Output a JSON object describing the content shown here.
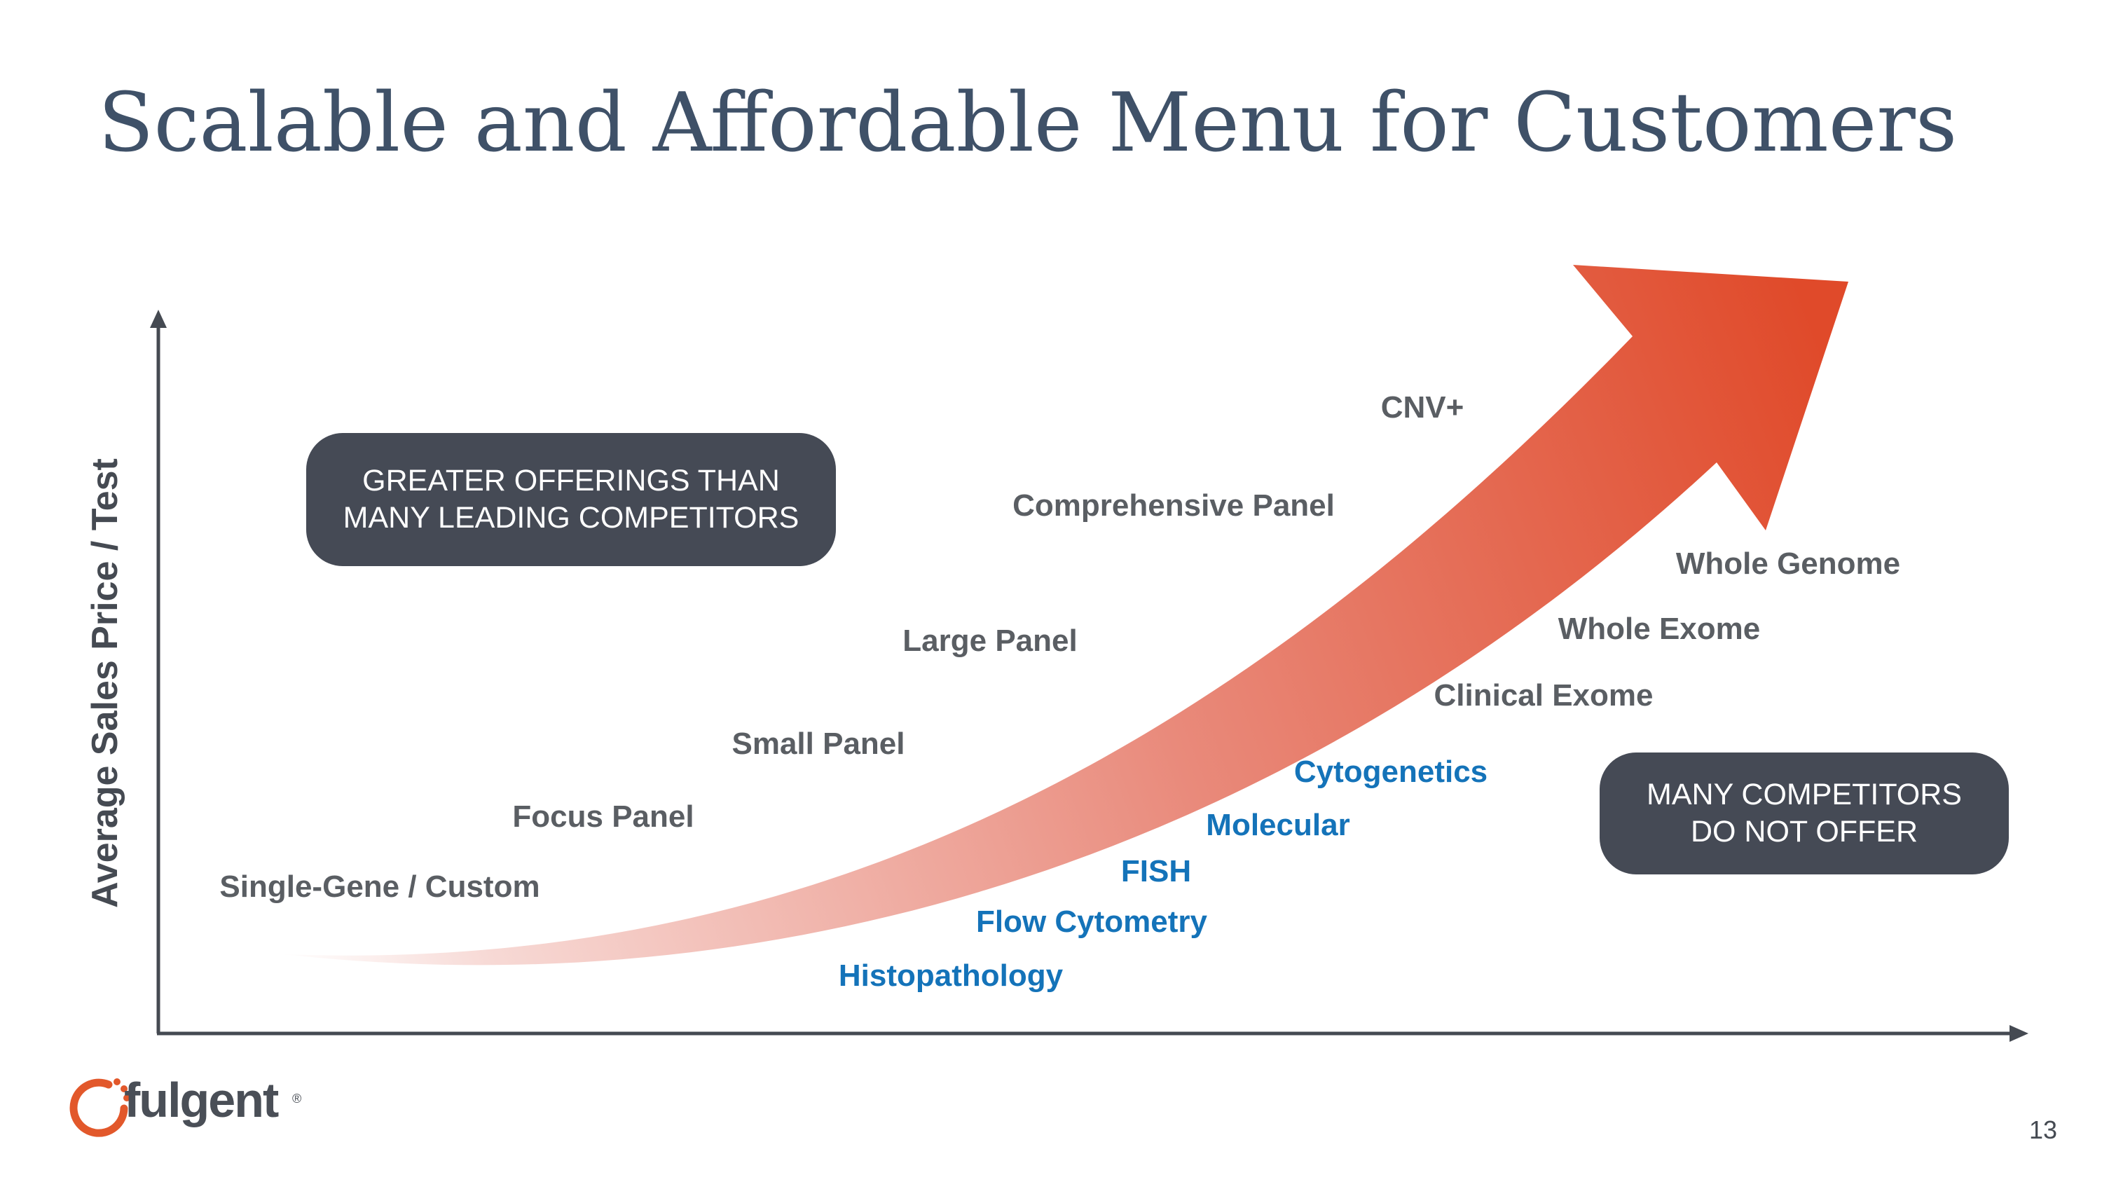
{
  "slide": {
    "title": "Scalable and Affordable Menu for Customers",
    "page_number": "13"
  },
  "axes": {
    "y_label": "Average Sales Price / Test",
    "color": "#454a52"
  },
  "arrow": {
    "gradient_start": "#f7d9d5",
    "gradient_mid": "#e98a7b",
    "gradient_end": "#e04a2a"
  },
  "offerings_gray": [
    {
      "label": "CNV+"
    },
    {
      "label": "Comprehensive Panel"
    },
    {
      "label": "Whole Genome"
    },
    {
      "label": "Large Panel"
    },
    {
      "label": "Whole Exome"
    },
    {
      "label": "Clinical Exome"
    },
    {
      "label": "Small Panel"
    },
    {
      "label": "Focus Panel"
    },
    {
      "label": "Single-Gene / Custom"
    }
  ],
  "offerings_blue": [
    {
      "label": "Cytogenetics"
    },
    {
      "label": "Molecular"
    },
    {
      "label": "FISH"
    },
    {
      "label": "Flow Cytometry"
    },
    {
      "label": "Histopathology"
    }
  ],
  "callouts": {
    "greater_offerings": {
      "line1": "GREATER OFFERINGS THAN",
      "line2": "MANY LEADING COMPETITORS"
    },
    "many_competitors": {
      "line1": "MANY COMPETITORS",
      "line2": "DO NOT OFFER"
    }
  },
  "colors": {
    "gray_text": "#5a5e63",
    "blue_text": "#1473b9",
    "callout_bg": "#454a55",
    "title": "#3f5168",
    "logo_orange": "#e2582b"
  },
  "logo": {
    "text": "fulgent",
    "mark": "®"
  }
}
